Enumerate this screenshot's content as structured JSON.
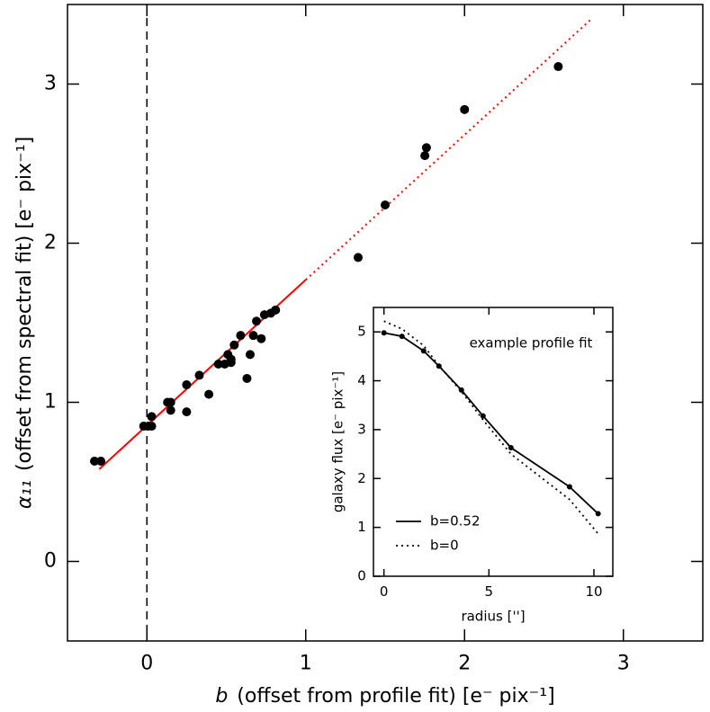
{
  "chart_data": [
    {
      "type": "scatter",
      "xlabel_symbol": "b",
      "xlabel": "(offset from profile fit) [e⁻ pix⁻¹]",
      "ylabel_symbol": "α₁₁",
      "ylabel": "(offset from spectral fit) [e⁻ pix⁻¹]",
      "x": [
        -0.33,
        -0.29,
        -0.02,
        0.01,
        0.03,
        0.03,
        0.13,
        0.15,
        0.15,
        0.25,
        0.25,
        0.33,
        0.39,
        0.45,
        0.49,
        0.51,
        0.53,
        0.53,
        0.55,
        0.59,
        0.63,
        0.65,
        0.67,
        0.69,
        0.72,
        0.74,
        0.78,
        0.81,
        1.33,
        1.5,
        1.75,
        1.76,
        2.0,
        2.59
      ],
      "values": [
        0.63,
        0.63,
        0.85,
        0.85,
        0.91,
        0.85,
        1.0,
        1.0,
        0.95,
        1.11,
        0.94,
        1.17,
        1.05,
        1.24,
        1.24,
        1.3,
        1.25,
        1.27,
        1.36,
        1.42,
        1.15,
        1.3,
        1.42,
        1.51,
        1.4,
        1.55,
        1.56,
        1.58,
        1.91,
        2.24,
        2.55,
        2.6,
        2.84,
        3.11
      ],
      "color": "#000000",
      "fit_lines": [
        {
          "x": [
            -0.3,
            1.0
          ],
          "values": [
            0.58,
            1.77
          ],
          "color": "#ff0000",
          "style": "solid"
        },
        {
          "x": [
            1.0,
            2.8
          ],
          "values": [
            1.77,
            3.41
          ],
          "color": "#ff0000",
          "style": "dotted"
        }
      ],
      "vline": 0,
      "xlim": [
        -0.5,
        3.5
      ],
      "ylim": [
        -0.5,
        3.5
      ],
      "xticks": [
        0,
        1,
        2,
        3
      ],
      "yticks": [
        0,
        1,
        2,
        3
      ]
    },
    {
      "type": "line",
      "title": "example profile fit",
      "xlabel": "radius ['']",
      "ylabel": "galaxy flux [e⁻ pix⁻¹]",
      "series": [
        {
          "name": "b=0.52",
          "color": "#000000",
          "style": "solid",
          "markers": true,
          "x": [
            0,
            0.86,
            1.89,
            2.62,
            3.69,
            4.72,
            6.05,
            8.84,
            10.2
          ],
          "values": [
            4.98,
            4.91,
            4.61,
            4.3,
            3.81,
            3.28,
            2.63,
            1.83,
            1.28
          ]
        },
        {
          "name": "b=0",
          "color": "#000000",
          "style": "dotted",
          "markers": false,
          "x": [
            0,
            0.86,
            1.89,
            2.62,
            3.69,
            4.72,
            6.05,
            8.84,
            10.2
          ],
          "values": [
            5.22,
            5.06,
            4.72,
            4.31,
            3.78,
            3.2,
            2.5,
            1.57,
            0.87
          ]
        }
      ],
      "xlim": [
        -0.5,
        10.9
      ],
      "ylim": [
        0,
        5.5
      ],
      "xticks": [
        0,
        5,
        10
      ],
      "yticks": [
        0,
        1,
        2,
        3,
        4,
        5
      ]
    }
  ]
}
